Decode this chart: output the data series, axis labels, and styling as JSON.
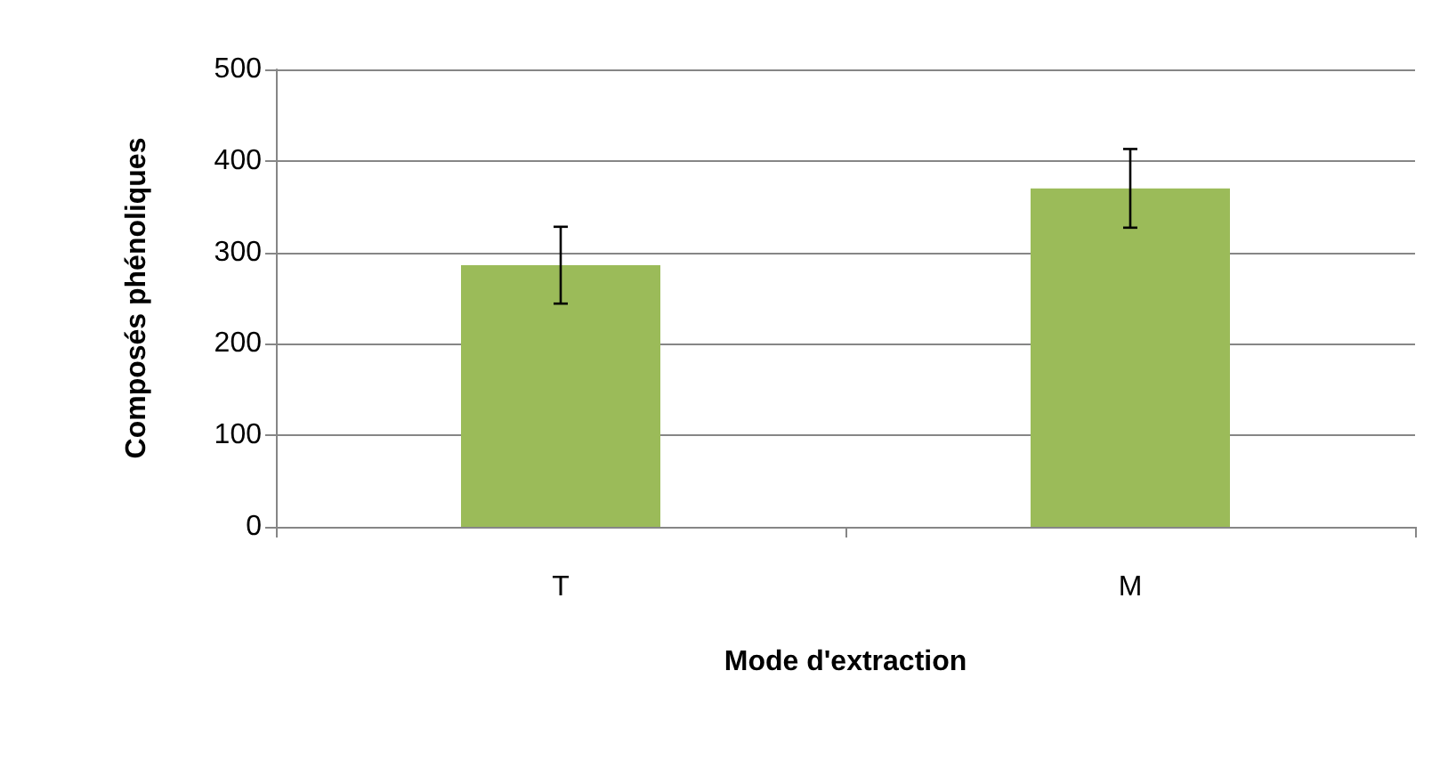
{
  "chart_data": {
    "type": "bar",
    "xlabel": "Mode d'extraction",
    "ylabel": "Composés phénoliques",
    "categories": [
      "T",
      "M"
    ],
    "values": [
      286,
      370
    ],
    "errors": [
      42,
      43
    ],
    "color": "#9bbb59",
    "ylim": [
      0,
      500
    ],
    "yticks": [
      0,
      100,
      200,
      300,
      400,
      500
    ],
    "grid": "y"
  }
}
